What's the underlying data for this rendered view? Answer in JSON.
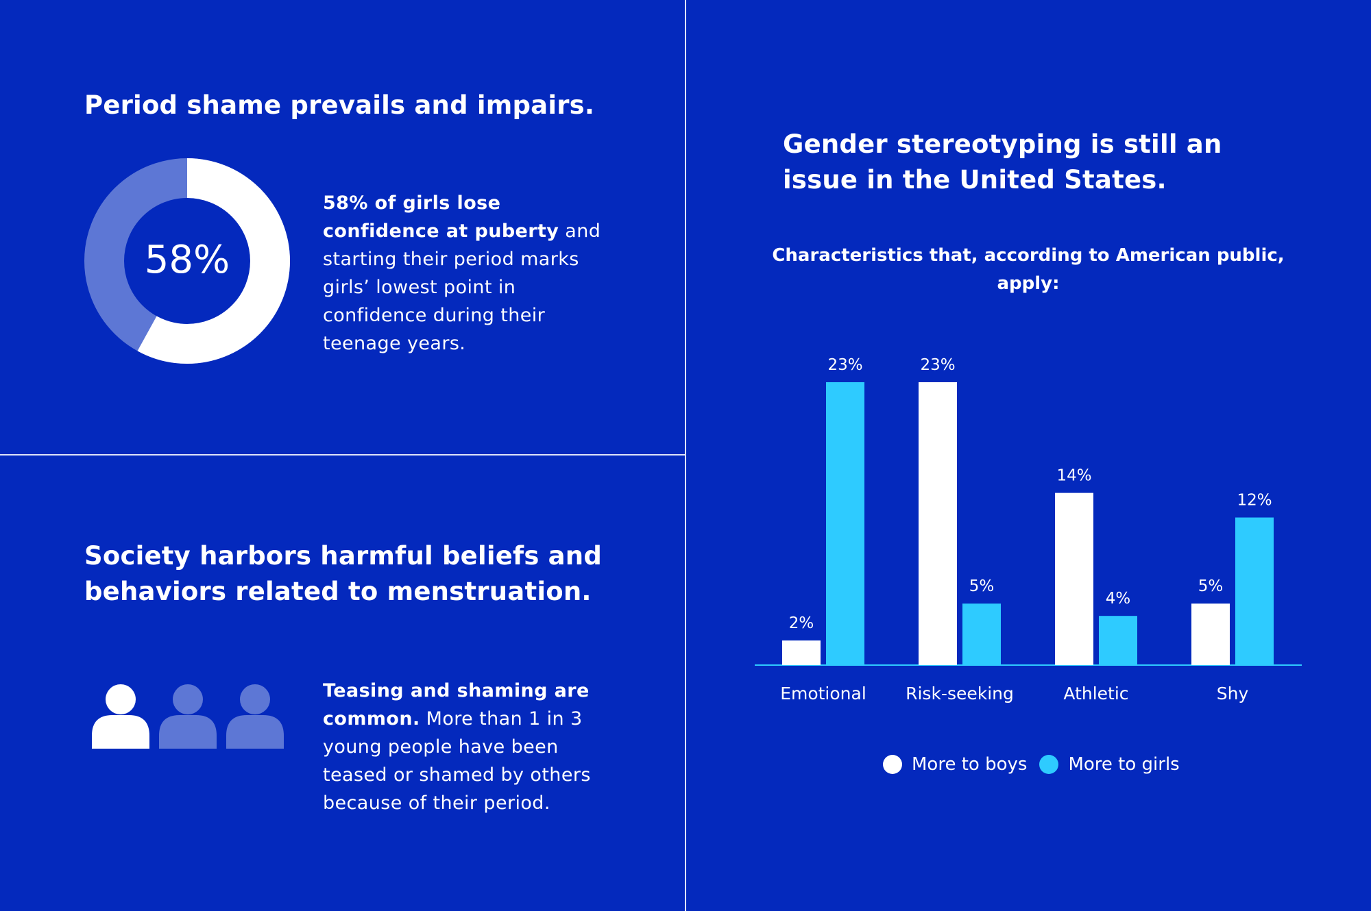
{
  "colors": {
    "background": "#0429bd",
    "white": "#ffffff",
    "accent_cyan": "#2ecbff",
    "muted_blue": "#5d77d5",
    "divider": "#dfe4f8"
  },
  "section1": {
    "title": "Period shame prevails and impairs.",
    "donut": {
      "value": 58,
      "label": "58%"
    },
    "text_bold": "58% of girls lose confidence at puberty",
    "text_rest": " and starting their period marks girls’ lowest point in confidence during their teenage years."
  },
  "section2": {
    "title": "Society harbors harmful beliefs and behaviors related to menstruation.",
    "icons": [
      "person-icon",
      "person-icon",
      "person-icon"
    ],
    "highlighted_count": 1,
    "total_count": 3,
    "text_bold": "Teasing and shaming are common.",
    "text_rest": " More than 1 in 3 young people have been teased or shamed by others because of their period."
  },
  "section3": {
    "title": "Gender stereotyping is still an issue in the United States.",
    "chart_subtitle": "Characteristics that, according to American public, apply:"
  },
  "chart_data": {
    "type": "bar",
    "title": "Characteristics that, according to American public, apply:",
    "categories": [
      "Emotional",
      "Risk-seeking",
      "Athletic",
      "Shy"
    ],
    "series": [
      {
        "name": "More to boys",
        "color": "#ffffff",
        "values": [
          2,
          23,
          14,
          5
        ],
        "labels": [
          "2%",
          "23%",
          "14%",
          "5%"
        ]
      },
      {
        "name": "More to girls",
        "color": "#2ecbff",
        "values": [
          23,
          5,
          4,
          12
        ],
        "labels": [
          "23%",
          "5%",
          "4%",
          "12%"
        ]
      }
    ],
    "ylim": [
      0,
      23
    ],
    "xlabel": "",
    "ylabel": "",
    "grid": false,
    "legend_position": "bottom"
  },
  "legend": {
    "boys_label": "More to boys",
    "girls_label": "More to girls"
  }
}
